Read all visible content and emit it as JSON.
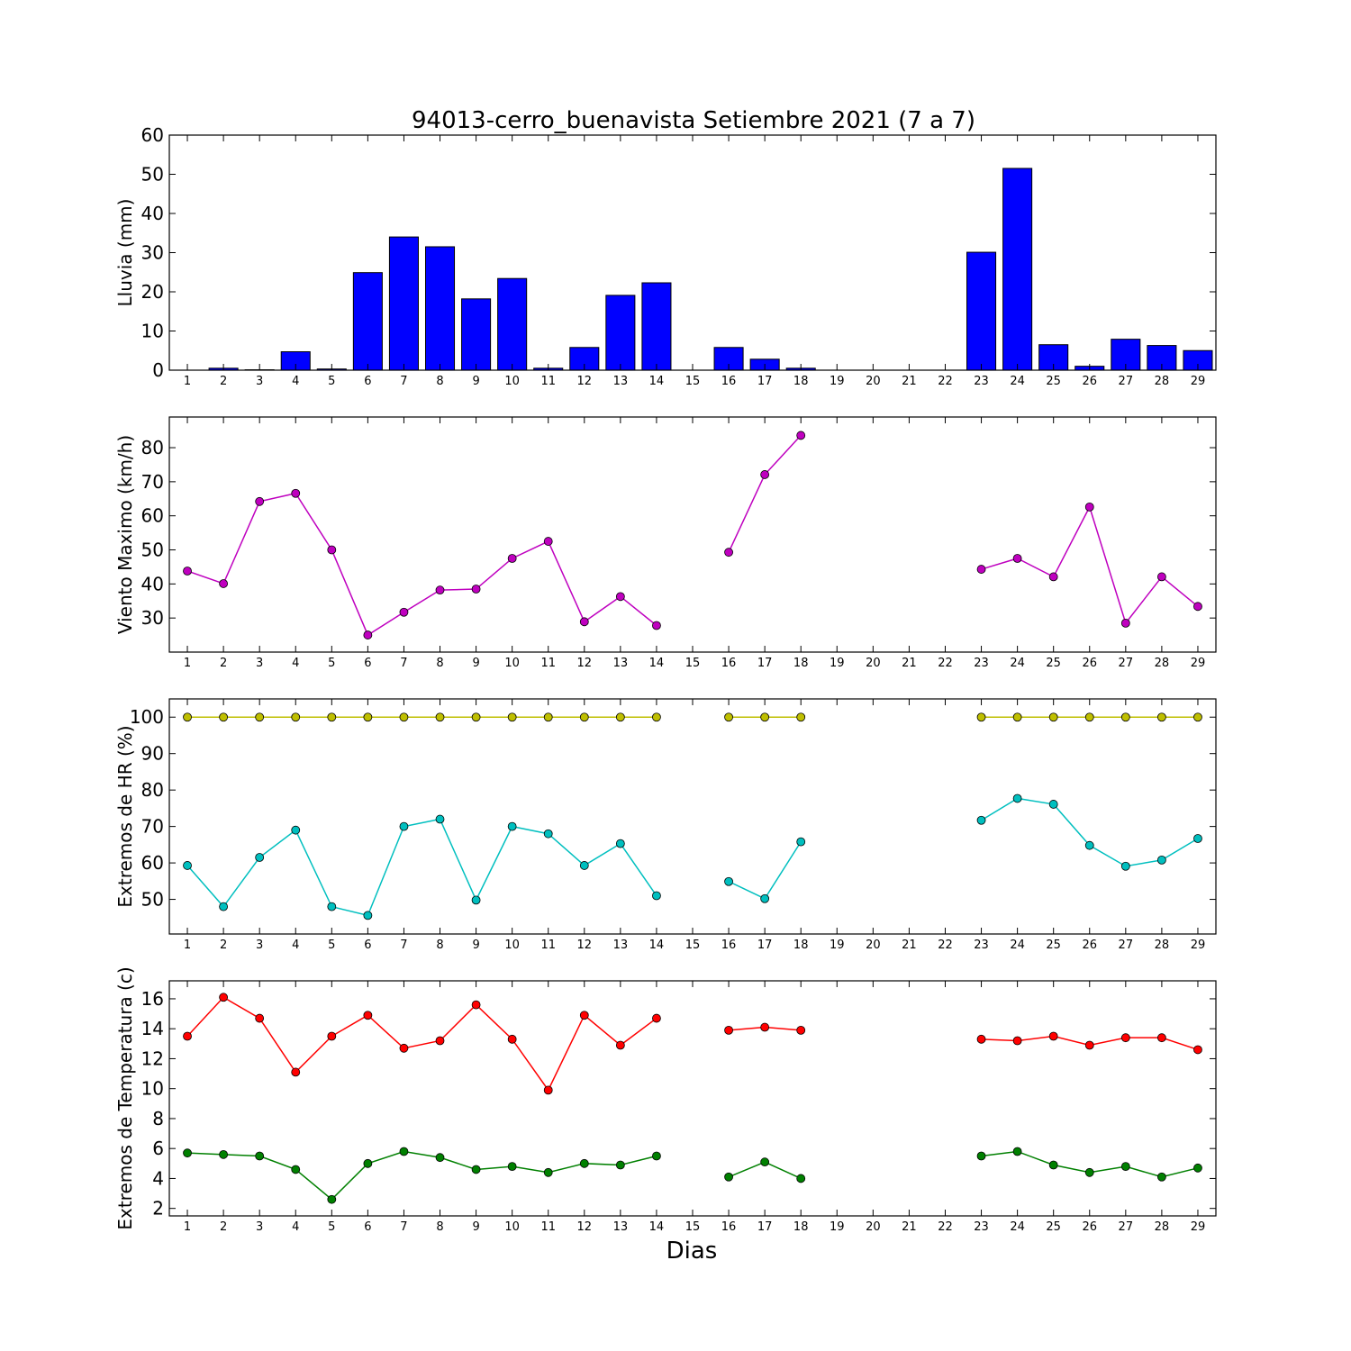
{
  "figure": {
    "title": "94013-cerro_buenavista Setiembre 2021  (7 a 7)",
    "xlabel": "Dias"
  },
  "chart_data": [
    {
      "type": "bar",
      "ylabel": "Lluvia (mm)",
      "ylim": [
        0,
        60
      ],
      "yticks": [
        0,
        10,
        20,
        30,
        40,
        50,
        60
      ],
      "x": [
        1,
        2,
        3,
        4,
        5,
        6,
        7,
        8,
        9,
        10,
        11,
        12,
        13,
        14,
        15,
        16,
        17,
        18,
        19,
        20,
        21,
        22,
        23,
        24,
        25,
        26,
        27,
        28,
        29
      ],
      "series": [
        {
          "color": "#0000ff",
          "values": [
            0,
            0.5,
            0.1,
            4.7,
            0.3,
            24.9,
            34.0,
            31.5,
            18.2,
            23.4,
            0.5,
            5.8,
            19.1,
            22.3,
            null,
            5.8,
            2.8,
            0.5,
            0,
            0,
            0,
            0,
            30.1,
            51.5,
            6.5,
            1.0,
            7.9,
            6.3,
            5.0
          ]
        }
      ],
      "grid": false
    },
    {
      "type": "line",
      "ylabel": "Viento Maximo (km/h)",
      "ylim": [
        20,
        89
      ],
      "yticks": [
        30,
        40,
        50,
        60,
        70,
        80
      ],
      "x": [
        1,
        2,
        3,
        4,
        5,
        6,
        7,
        8,
        9,
        10,
        11,
        12,
        13,
        14,
        15,
        16,
        17,
        18,
        19,
        20,
        21,
        22,
        23,
        24,
        25,
        26,
        27,
        28,
        29
      ],
      "series": [
        {
          "color": "#bf00bf",
          "values": [
            43.8,
            40.1,
            64.2,
            66.6,
            50.0,
            25.0,
            31.7,
            38.2,
            38.5,
            47.5,
            52.5,
            28.9,
            36.3,
            27.8,
            null,
            49.3,
            72.1,
            83.6,
            null,
            null,
            null,
            null,
            44.3,
            47.5,
            42.1,
            62.6,
            28.5,
            42.1,
            33.4
          ]
        }
      ],
      "grid": false
    },
    {
      "type": "line",
      "ylabel": "Extremos de HR (%)",
      "ylim": [
        40.5,
        105
      ],
      "yticks": [
        50,
        60,
        70,
        80,
        90,
        100
      ],
      "x": [
        1,
        2,
        3,
        4,
        5,
        6,
        7,
        8,
        9,
        10,
        11,
        12,
        13,
        14,
        15,
        16,
        17,
        18,
        19,
        20,
        21,
        22,
        23,
        24,
        25,
        26,
        27,
        28,
        29
      ],
      "series": [
        {
          "color": "#bfbf00",
          "values": [
            100,
            100,
            100,
            100,
            100,
            100,
            100,
            100,
            100,
            100,
            100,
            100,
            100,
            100,
            null,
            100,
            100,
            100,
            null,
            null,
            null,
            null,
            100,
            100,
            100,
            100,
            100,
            100,
            100
          ]
        },
        {
          "color": "#00bfbf",
          "values": [
            59.3,
            48.0,
            61.5,
            69.0,
            48.0,
            45.6,
            70.0,
            72.0,
            49.8,
            70.0,
            68.0,
            59.3,
            65.3,
            51.0,
            null,
            54.9,
            50.2,
            65.8,
            null,
            null,
            null,
            null,
            71.7,
            77.7,
            76.1,
            64.8,
            59.1,
            60.8,
            66.7
          ]
        }
      ],
      "grid": false
    },
    {
      "type": "line",
      "ylabel": "Extremos de Temperatura (c)",
      "ylim": [
        1.5,
        17.2
      ],
      "yticks": [
        2,
        4,
        6,
        8,
        10,
        12,
        14,
        16
      ],
      "x": [
        1,
        2,
        3,
        4,
        5,
        6,
        7,
        8,
        9,
        10,
        11,
        12,
        13,
        14,
        15,
        16,
        17,
        18,
        19,
        20,
        21,
        22,
        23,
        24,
        25,
        26,
        27,
        28,
        29
      ],
      "series": [
        {
          "color": "#ff0000",
          "values": [
            13.5,
            16.1,
            14.7,
            11.1,
            13.5,
            14.9,
            12.7,
            13.2,
            15.6,
            13.3,
            9.9,
            14.9,
            12.9,
            14.7,
            null,
            13.9,
            14.1,
            13.9,
            null,
            null,
            null,
            null,
            13.3,
            13.2,
            13.5,
            12.9,
            13.4,
            13.4,
            12.6
          ]
        },
        {
          "color": "#008000",
          "values": [
            5.7,
            5.6,
            5.5,
            4.6,
            2.6,
            5.0,
            5.8,
            5.4,
            4.6,
            4.8,
            4.4,
            5.0,
            4.9,
            5.5,
            null,
            4.1,
            5.1,
            4.0,
            null,
            null,
            null,
            null,
            5.5,
            5.8,
            4.9,
            4.4,
            4.8,
            4.1,
            4.7
          ]
        }
      ],
      "grid": false
    }
  ]
}
